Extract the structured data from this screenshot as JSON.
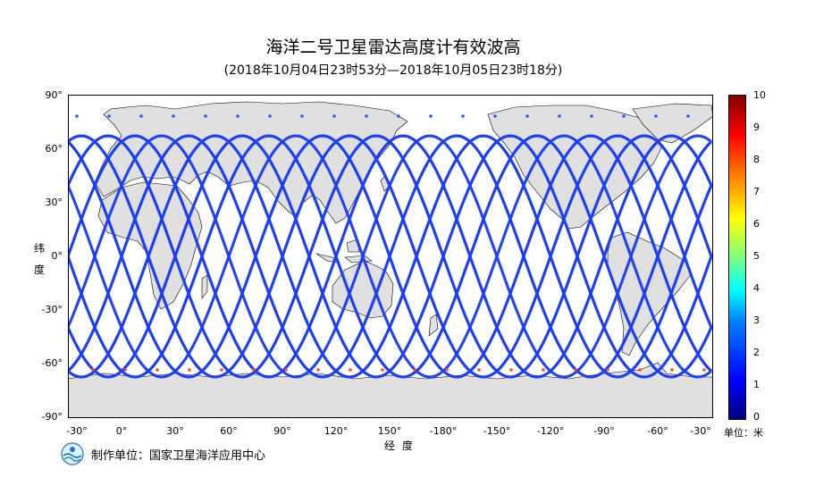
{
  "title": "海洋二号卫星雷达高度计有效波高",
  "subtitle": "(2018年10月04日23时53分—2018年10月05日23时18分)",
  "axes": {
    "y_label": "纬度",
    "x_label": "经度",
    "y_ticks": [
      "90°",
      "60°",
      "30°",
      "0°",
      "-30°",
      "-60°",
      "-90°"
    ],
    "x_ticks": [
      "-30°",
      "0°",
      "30°",
      "60°",
      "90°",
      "120°",
      "150°",
      "-180°",
      "-150°",
      "-120°",
      "-90°",
      "-60°",
      "-30°"
    ]
  },
  "colorbar": {
    "ticks": [
      "10",
      "9",
      "8",
      "7",
      "6",
      "5",
      "4",
      "3",
      "2",
      "1",
      "0"
    ],
    "unit": "单位：米"
  },
  "footer": {
    "org": "制作单位：国家卫星海洋应用中心"
  },
  "colors": {
    "land": "#e0e0e0",
    "ocean": "#ffffff",
    "track_main": "#1f3ff0"
  }
}
